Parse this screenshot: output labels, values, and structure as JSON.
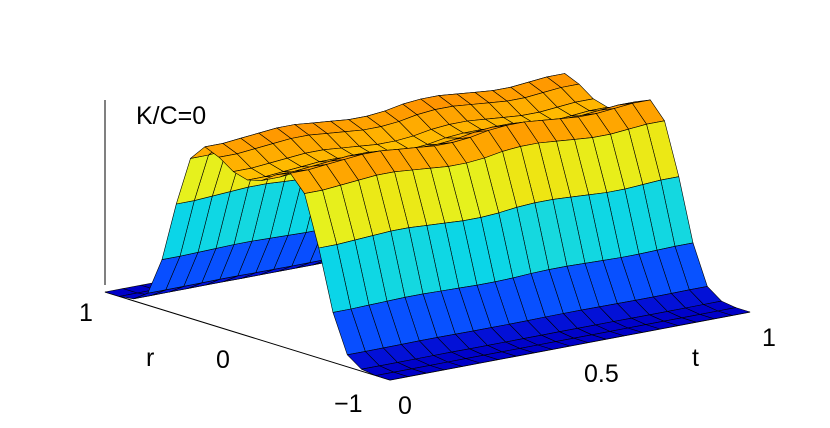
{
  "chart_data": {
    "type": "surface",
    "title": "K/C=0",
    "xlabel": "t",
    "ylabel": "r",
    "zlabel": "",
    "x_ticks": [
      "0",
      "0.5",
      "1"
    ],
    "y_ticks": [
      "−1",
      "0",
      "1"
    ],
    "xlim": [
      0,
      1
    ],
    "ylim": [
      -1,
      1
    ],
    "zlim": [
      0,
      1
    ],
    "grid": false,
    "colormap": "jet",
    "x": [
      0,
      0.05,
      0.1,
      0.15,
      0.2,
      0.25,
      0.3,
      0.35,
      0.4,
      0.45,
      0.5,
      0.55,
      0.6,
      0.65,
      0.7,
      0.75,
      0.8,
      0.85,
      0.9,
      0.95,
      1.0
    ],
    "y": [
      -1,
      -0.9,
      -0.8,
      -0.7,
      -0.6,
      -0.5,
      -0.4,
      -0.3,
      -0.2,
      -0.1,
      0,
      0.1,
      0.2,
      0.3,
      0.4,
      0.5,
      0.6,
      0.7,
      0.8,
      0.9,
      1.0
    ],
    "z_profile_over_r": [
      0.0,
      0.0,
      0.01,
      0.06,
      0.25,
      0.55,
      0.8,
      0.88,
      0.85,
      0.8,
      0.78,
      0.8,
      0.85,
      0.88,
      0.8,
      0.55,
      0.25,
      0.06,
      0.01,
      0.0,
      0.0
    ],
    "z_modulation_over_t": [
      1.0,
      1.0,
      1.01,
      1.02,
      1.03,
      1.03,
      1.02,
      1.01,
      1.0,
      1.0,
      1.01,
      1.03,
      1.04,
      1.04,
      1.03,
      1.02,
      1.01,
      1.01,
      1.02,
      1.03,
      1.03
    ]
  }
}
